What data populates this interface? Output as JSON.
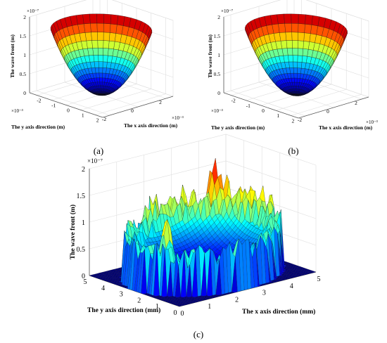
{
  "chart_data": [
    {
      "panel": "a",
      "caption": "(a)",
      "type": "surface",
      "surface": "paraboloid",
      "colormap": "jet",
      "xlabel": "The x axis direction (m)",
      "ylabel": "The y axis direction (m)",
      "zlabel": "The wave front (m)",
      "x_exponent": "×10⁻³",
      "y_exponent": "×10⁻³",
      "z_exponent": "×10⁻⁷",
      "xlim": [
        -2.5,
        2.5
      ],
      "ylim": [
        -2.5,
        2.5
      ],
      "zlim": [
        0,
        2
      ],
      "x_ticks": [
        "-2",
        "-1",
        "0",
        "1",
        "2"
      ],
      "y_ticks": [
        "-2",
        "0",
        "2"
      ],
      "z_ticks": [
        "0",
        "0.5",
        "1",
        "1.5",
        "2"
      ],
      "z_range": [
        0,
        1.7
      ],
      "grid": true
    },
    {
      "panel": "b",
      "caption": "(b)",
      "type": "surface",
      "surface": "paraboloid",
      "colormap": "jet",
      "xlabel": "The x axis direction (m)",
      "ylabel": "The y axis direction (m)",
      "zlabel": "The wave front (m)",
      "x_exponent": "×10⁻³",
      "y_exponent": "×10⁻³",
      "z_exponent": "×10⁻⁷",
      "xlim": [
        -2.5,
        2.5
      ],
      "ylim": [
        -2.5,
        2.5
      ],
      "zlim": [
        0,
        2
      ],
      "x_ticks": [
        "-2",
        "-1",
        "0",
        "1",
        "2"
      ],
      "y_ticks": [
        "-2",
        "0",
        "2"
      ],
      "z_ticks": [
        "0",
        "0.5",
        "1",
        "1.5",
        "2"
      ],
      "z_range": [
        0,
        1.7
      ],
      "grid": true
    },
    {
      "panel": "c",
      "caption": "(c)",
      "type": "surface",
      "surface": "reconstructed wavefront with noisy edges and two corner peaks",
      "colormap": "jet",
      "xlabel": "The x axis direction (mm)",
      "ylabel": "The y axis direction (mm)",
      "zlabel": "The wave front (m)",
      "z_exponent": "×10⁻⁷",
      "xlim": [
        0,
        5
      ],
      "ylim": [
        0,
        5
      ],
      "zlim": [
        0,
        2
      ],
      "x_ticks": [
        "0",
        "1",
        "2",
        "3",
        "4",
        "5"
      ],
      "y_ticks": [
        "0",
        "1",
        "2",
        "3",
        "4",
        "5"
      ],
      "z_ticks": [
        "0",
        "0.5",
        "1",
        "1.5",
        "2"
      ],
      "z_range": [
        0,
        1.75
      ],
      "grid": true
    }
  ]
}
